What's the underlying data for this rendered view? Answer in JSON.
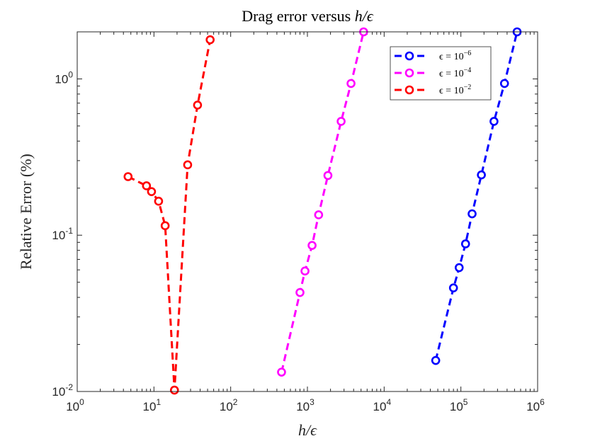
{
  "chart_data": {
    "type": "line",
    "title": "Drag error versus h/ϵ",
    "title_prefix": "Drag error versus ",
    "title_math": "h/ϵ",
    "xlabel": "h/ϵ",
    "ylabel": "Relative Error (%)",
    "xscale": "log",
    "yscale": "log",
    "xlim": [
      1,
      1000000
    ],
    "ylim": [
      0.01,
      2
    ],
    "grid": false,
    "legend_position": "top-right",
    "x_ticks": [
      {
        "value": 1,
        "base": "10",
        "exp": "0"
      },
      {
        "value": 10,
        "base": "10",
        "exp": "1"
      },
      {
        "value": 100,
        "base": "10",
        "exp": "2"
      },
      {
        "value": 1000,
        "base": "10",
        "exp": "3"
      },
      {
        "value": 10000,
        "base": "10",
        "exp": "4"
      },
      {
        "value": 100000,
        "base": "10",
        "exp": "5"
      },
      {
        "value": 1000000,
        "base": "10",
        "exp": "6"
      }
    ],
    "y_ticks": [
      {
        "value": 0.01,
        "base": "10",
        "exp": "-2"
      },
      {
        "value": 0.1,
        "base": "10",
        "exp": "-1"
      },
      {
        "value": 1,
        "base": "10",
        "exp": "0"
      }
    ],
    "series": [
      {
        "name": "ϵ = 10⁻⁶",
        "legend_prefix": "ϵ = 10",
        "legend_exp": "−6",
        "color": "#0000ff",
        "x": [
          47000,
          80000,
          95000,
          115000,
          140000,
          185000,
          270000,
          370000,
          540000
        ],
        "y": [
          0.0158,
          0.046,
          0.062,
          0.088,
          0.137,
          0.243,
          0.535,
          0.935,
          2.0
        ]
      },
      {
        "name": "ϵ = 10⁻⁴",
        "legend_prefix": "ϵ = 10",
        "legend_exp": "−4",
        "color": "#ff00ff",
        "x": [
          460,
          800,
          930,
          1150,
          1400,
          1850,
          2750,
          3700,
          5400
        ],
        "y": [
          0.0133,
          0.043,
          0.059,
          0.086,
          0.135,
          0.241,
          0.535,
          0.935,
          2.0
        ]
      },
      {
        "name": "ϵ = 10⁻²",
        "legend_prefix": "ϵ = 10",
        "legend_exp": "−2",
        "color": "#ff0000",
        "x": [
          4.6,
          8.0,
          9.3,
          11.5,
          14.0,
          18.5,
          27.5,
          37.0,
          54.0
        ],
        "y": [
          0.237,
          0.207,
          0.19,
          0.165,
          0.115,
          0.0102,
          0.282,
          0.68,
          1.78
        ]
      }
    ]
  }
}
